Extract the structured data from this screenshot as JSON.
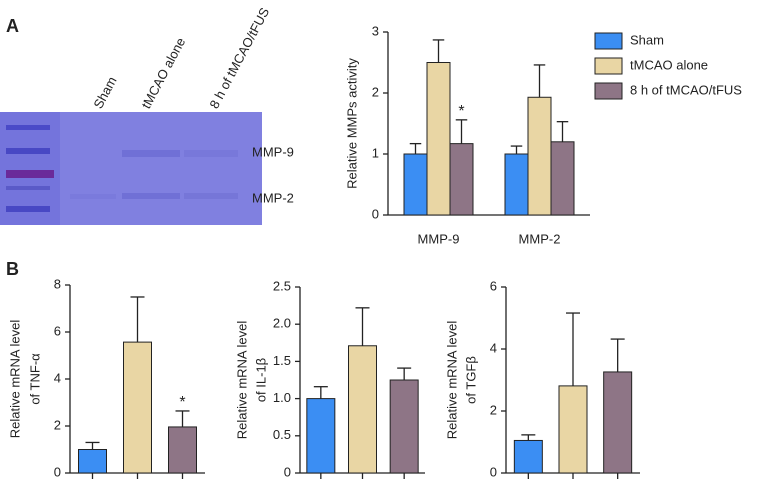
{
  "figure": {
    "panel_labels": [
      "A",
      "B"
    ],
    "gel": {
      "lanes": [
        "Sham",
        "tMCAO alone",
        "8 h of tMCAO/tFUS"
      ],
      "bands": [
        "MMP-9",
        "MMP-2"
      ]
    }
  },
  "chart_data": [
    {
      "type": "bar",
      "ylabel": [
        "Relative MMPs activity"
      ],
      "categories": [
        "MMP-9",
        "MMP-2"
      ],
      "series": [
        {
          "name": "Sham",
          "color": "#3b8ef3",
          "values": [
            1.0,
            1.0
          ],
          "errors": [
            0.17,
            0.13
          ],
          "significance": [
            null,
            null
          ]
        },
        {
          "name": "tMCAO alone",
          "color": "#e9d6a4",
          "values": [
            2.5,
            1.93
          ],
          "errors": [
            0.37,
            0.53
          ],
          "significance": [
            null,
            null
          ]
        },
        {
          "name": "8 h of tMCAO/tFUS",
          "color": "#8e7586",
          "values": [
            1.17,
            1.2
          ],
          "errors": [
            0.39,
            0.33
          ],
          "significance": [
            "*",
            null
          ]
        }
      ],
      "ylim": [
        0,
        3
      ],
      "yticks": [
        0,
        1,
        2,
        3
      ]
    },
    {
      "type": "bar",
      "ylabel": [
        "Relative mRNA level",
        "of TNF-α"
      ],
      "categories": [
        null,
        null,
        null
      ],
      "values": [
        1.0,
        5.57,
        1.96
      ],
      "errors": [
        0.3,
        1.92,
        0.68
      ],
      "colors": [
        "#3b8ef3",
        "#e9d6a4",
        "#8e7586"
      ],
      "significance": [
        null,
        null,
        "*"
      ],
      "ylim": [
        0,
        8
      ],
      "yticks": [
        0,
        2,
        4,
        6,
        8
      ]
    },
    {
      "type": "bar",
      "ylabel": [
        "Relative mRNA level",
        "of IL-1β"
      ],
      "categories": [
        null,
        null,
        null
      ],
      "values": [
        1.0,
        1.71,
        1.25
      ],
      "errors": [
        0.16,
        0.51,
        0.16
      ],
      "colors": [
        "#3b8ef3",
        "#e9d6a4",
        "#8e7586"
      ],
      "significance": [
        null,
        null,
        null
      ],
      "ylim": [
        0,
        2.5
      ],
      "yticks": [
        0,
        0.5,
        {
          "value": 1,
          "label": "1.0"
        },
        1.5,
        {
          "value": 2,
          "label": "2.0"
        },
        2.5
      ]
    },
    {
      "type": "bar",
      "ylabel": [
        "Relative mRNA level",
        "of TGFβ"
      ],
      "categories": [
        null,
        null,
        null
      ],
      "values": [
        1.05,
        2.81,
        3.26
      ],
      "errors": [
        0.18,
        2.35,
        1.06
      ],
      "colors": [
        "#3b8ef3",
        "#e9d6a4",
        "#8e7586"
      ],
      "significance": [
        null,
        null,
        null
      ],
      "ylim": [
        0,
        6
      ],
      "yticks": [
        0,
        2,
        4,
        6
      ]
    }
  ]
}
